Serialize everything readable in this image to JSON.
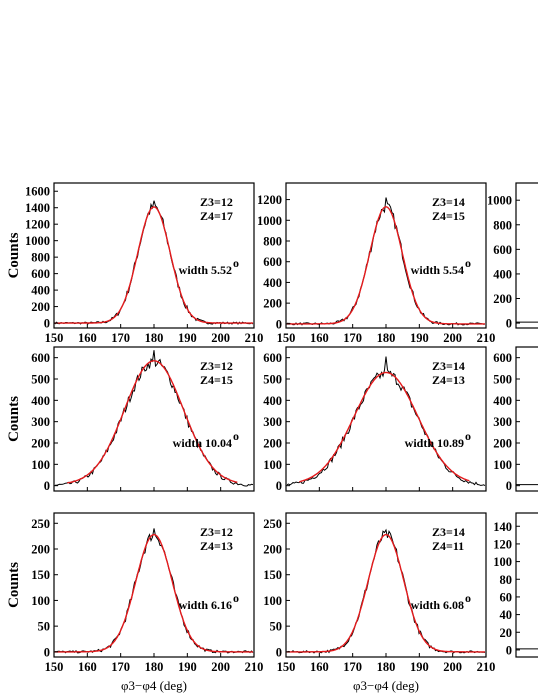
{
  "chart_data": [
    {
      "type": "line",
      "panel": "A",
      "ylabel": "Counts",
      "xlabel": "",
      "xlim": [
        150,
        210
      ],
      "ylim": [
        -60,
        1700
      ],
      "xticks": [
        "150",
        "160",
        "170",
        "180",
        "190",
        "200",
        "210"
      ],
      "yticks": [
        "0",
        "200",
        "400",
        "600",
        "800",
        "1000",
        "1200",
        "1400",
        "1600"
      ],
      "annotations": [
        "Z3=12",
        "Z4=17",
        "width 5.52"
      ],
      "gaussian": {
        "amplitude": 1410,
        "center": 180,
        "width": 5.52
      },
      "data_peak": 1485
    },
    {
      "type": "line",
      "panel": "B",
      "ylabel": "",
      "xlabel": "",
      "xlim": [
        150,
        210
      ],
      "ylim": [
        -40,
        1360
      ],
      "xticks": [
        "150",
        "160",
        "170",
        "180",
        "190",
        "200",
        "210"
      ],
      "yticks": [
        "0",
        "200",
        "400",
        "600",
        "800",
        "1000",
        "1200"
      ],
      "annotations": [
        "Z3=14",
        "Z4=15",
        "width 5.54"
      ],
      "gaussian": {
        "amplitude": 1130,
        "center": 180,
        "width": 5.54
      },
      "data_peak": 1220
    },
    {
      "type": "line",
      "panel": "C",
      "ylabel": "",
      "xlabel": "",
      "xlim": [
        150,
        210
      ],
      "ylim": [
        -40,
        1140
      ],
      "xticks": [],
      "yticks": [
        "0",
        "200",
        "400",
        "600",
        "800",
        "1000"
      ],
      "annotations": [],
      "gaussian": null,
      "data_peak": null
    },
    {
      "type": "line",
      "panel": "D",
      "ylabel": "Counts",
      "xlabel": "",
      "xlim": [
        150,
        210
      ],
      "ylim": [
        -25,
        650
      ],
      "xticks": [],
      "yticks": [
        "0",
        "100",
        "200",
        "300",
        "400",
        "500",
        "600"
      ],
      "annotations": [
        "Z3=12",
        "Z4=15",
        "width 10.04"
      ],
      "gaussian": {
        "amplitude": 580,
        "center": 180,
        "width": 10.04
      },
      "data_peak": 635
    },
    {
      "type": "line",
      "panel": "E",
      "ylabel": "",
      "xlabel": "",
      "xlim": [
        150,
        210
      ],
      "ylim": [
        -25,
        650
      ],
      "xticks": [],
      "yticks": [
        "0",
        "100",
        "200",
        "300",
        "400",
        "500",
        "600"
      ],
      "annotations": [
        "Z3=14",
        "Z4=13",
        "width 10.89"
      ],
      "gaussian": {
        "amplitude": 525,
        "center": 180,
        "width": 10.89
      },
      "data_peak": 605
    },
    {
      "type": "line",
      "panel": "F",
      "ylabel": "",
      "xlabel": "",
      "xlim": [
        150,
        210
      ],
      "ylim": [
        -25,
        650
      ],
      "xticks": [],
      "yticks": [
        "0",
        "100",
        "200",
        "300",
        "400",
        "500",
        "600"
      ],
      "annotations": [],
      "gaussian": null,
      "data_peak": null
    },
    {
      "type": "line",
      "panel": "G",
      "ylabel": "Counts",
      "xlabel": "φ3−φ4 (deg)",
      "xlim": [
        150,
        210
      ],
      "ylim": [
        -10,
        270
      ],
      "xticks": [
        "150",
        "160",
        "170",
        "180",
        "190",
        "200",
        "210"
      ],
      "yticks": [
        "0",
        "50",
        "100",
        "150",
        "200",
        "250"
      ],
      "annotations": [
        "Z3=12",
        "Z4=13",
        "width 6.16"
      ],
      "gaussian": {
        "amplitude": 228,
        "center": 180,
        "width": 6.16
      },
      "data_peak": 240
    },
    {
      "type": "line",
      "panel": "H",
      "ylabel": "",
      "xlabel": "φ3−φ4 (deg)",
      "xlim": [
        150,
        210
      ],
      "ylim": [
        -10,
        270
      ],
      "xticks": [
        "150",
        "160",
        "170",
        "180",
        "190",
        "200",
        "210"
      ],
      "yticks": [
        "0",
        "50",
        "100",
        "150",
        "200",
        "250"
      ],
      "annotations": [
        "Z3=14",
        "Z4=11",
        "width 6.08"
      ],
      "gaussian": {
        "amplitude": 228,
        "center": 180,
        "width": 6.08
      },
      "data_peak": 237
    },
    {
      "type": "line",
      "panel": "I",
      "ylabel": "",
      "xlabel": "",
      "xlim": [
        150,
        210
      ],
      "ylim": [
        -8,
        155
      ],
      "xticks": [],
      "yticks": [
        "0",
        "20",
        "40",
        "60",
        "80",
        "100",
        "120",
        "140"
      ],
      "annotations": [],
      "gaussian": null,
      "data_peak": null
    }
  ],
  "styles": {
    "data_color": "#000000",
    "fit_color": "#e41a1c"
  },
  "degree_symbol": "o"
}
